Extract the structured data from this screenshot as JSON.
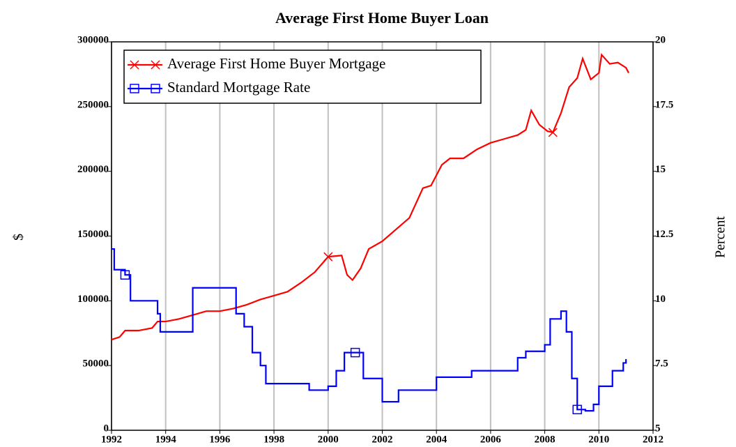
{
  "chart_data": {
    "type": "line",
    "title": "Average First Home Buyer Loan",
    "y_label": "$",
    "y2_label": "Percent",
    "xlim": [
      1992,
      2012
    ],
    "xticks": [
      1992,
      1994,
      1996,
      1998,
      2000,
      2002,
      2004,
      2006,
      2008,
      2010,
      2012
    ],
    "ylim": [
      0,
      300000
    ],
    "yticks": [
      0,
      50000,
      100000,
      150000,
      200000,
      250000,
      300000
    ],
    "y2lim": [
      5,
      20
    ],
    "y2ticks": [
      5,
      7.5,
      10,
      12.5,
      15,
      17.5,
      20
    ],
    "grid": true,
    "legend": "upper left",
    "series": [
      {
        "name": "Average First Home Buyer Mortgage",
        "color": "#ff0000",
        "step": false,
        "x": [
          1992.0,
          1992.3,
          1992.5,
          1993.0,
          1993.5,
          1993.7,
          1994.0,
          1994.5,
          1995.0,
          1995.5,
          1996.0,
          1996.5,
          1997.0,
          1997.5,
          1998.0,
          1998.5,
          1999.0,
          1999.5,
          2000.0,
          2000.5,
          2000.7,
          2000.9,
          2001.2,
          2001.5,
          2002.0,
          2002.5,
          2003.0,
          2003.5,
          2003.8,
          2004.2,
          2004.5,
          2005.0,
          2005.5,
          2006.0,
          2006.5,
          2007.0,
          2007.3,
          2007.5,
          2007.8,
          2008.1,
          2008.3,
          2008.6,
          2008.9,
          2009.2,
          2009.4,
          2009.7,
          2010.0,
          2010.1,
          2010.4,
          2010.7,
          2011.0,
          2011.1
        ],
        "values": [
          70000,
          72000,
          77000,
          77000,
          79000,
          84000,
          84000,
          86000,
          89000,
          92000,
          92000,
          94000,
          97000,
          101000,
          104000,
          107000,
          114000,
          122000,
          134000,
          135000,
          120000,
          116000,
          125000,
          140000,
          146000,
          155000,
          164000,
          187000,
          189000,
          205000,
          210000,
          210000,
          217000,
          222000,
          225000,
          228000,
          232000,
          247000,
          236000,
          231000,
          230000,
          245000,
          265000,
          272000,
          287000,
          271000,
          276000,
          290000,
          283000,
          284000,
          280000,
          276000
        ]
      },
      {
        "name": "Standard Mortgage Rate",
        "color": "#0000ff",
        "axis": "y2",
        "step": true,
        "x": [
          1992.0,
          1992.1,
          1992.5,
          1992.7,
          1993.5,
          1993.7,
          1993.8,
          1994.9,
          1995.0,
          1996.5,
          1996.6,
          1996.9,
          1997.2,
          1997.5,
          1997.7,
          1999.0,
          1999.3,
          2000.0,
          2000.3,
          2000.6,
          2001.0,
          2001.3,
          2001.6,
          2002.0,
          2002.4,
          2002.6,
          2003.8,
          2004.0,
          2005.0,
          2005.3,
          2006.6,
          2007.0,
          2007.3,
          2008.0,
          2008.2,
          2008.6,
          2008.8,
          2009.0,
          2009.2,
          2009.5,
          2009.8,
          2010.0,
          2010.5,
          2010.9,
          2011.0
        ],
        "values": [
          12.0,
          11.2,
          11.0,
          10.0,
          10.0,
          9.5,
          8.8,
          8.8,
          10.5,
          10.5,
          9.5,
          9.0,
          8.0,
          7.5,
          6.8,
          6.8,
          6.55,
          6.7,
          7.3,
          8.0,
          8.0,
          7.0,
          7.0,
          6.1,
          6.1,
          6.55,
          6.55,
          7.05,
          7.05,
          7.3,
          7.3,
          7.8,
          8.05,
          8.3,
          9.3,
          9.6,
          8.8,
          7.0,
          5.8,
          5.75,
          6.0,
          6.7,
          7.3,
          7.6,
          7.75
        ]
      }
    ]
  }
}
